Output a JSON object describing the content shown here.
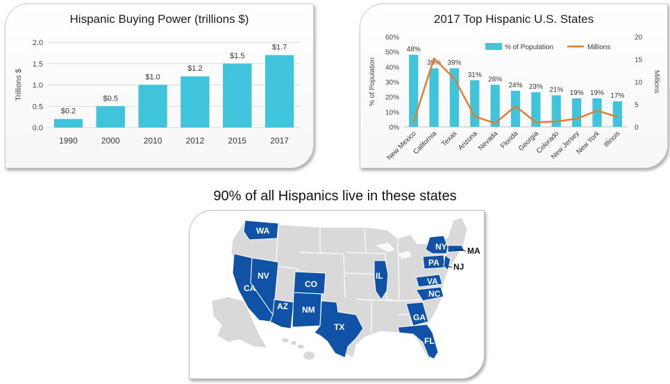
{
  "chart_data": [
    {
      "type": "bar",
      "title": "Hispanic Buying Power (trillions $)",
      "ylabel": "Trillions $",
      "categories": [
        "1990",
        "2000",
        "2010",
        "2012",
        "2015",
        "2017"
      ],
      "values": [
        0.2,
        0.5,
        1.0,
        1.2,
        1.5,
        1.7
      ],
      "data_labels": [
        "$0.2",
        "$0.5",
        "$1.0",
        "$1.2",
        "$1.5",
        "$1.7"
      ],
      "ylim": [
        0,
        2.0
      ],
      "yticks": [
        "0.0",
        "0.5",
        "1.0",
        "1.5",
        "2.0"
      ],
      "grid": true,
      "colors": {
        "bar": "#40c4dc",
        "grid": "#d9d9d9"
      }
    },
    {
      "type": "bar",
      "title": "2017 Top Hispanic U.S. States",
      "ylabel": "% of Population",
      "y2label": "Millions",
      "categories": [
        "New Mexico",
        "California",
        "Texas",
        "Arizona",
        "Nevada",
        "Florida",
        "Georgia",
        "Colorado",
        "New Jersey",
        "New York",
        "Illinois"
      ],
      "series": [
        {
          "name": "% of Population",
          "type": "bar",
          "axis": "left",
          "values": [
            48,
            39,
            39,
            31,
            28,
            24,
            23,
            21,
            19,
            19,
            17
          ],
          "data_labels": [
            "48%",
            "39%",
            "39%",
            "31%",
            "28%",
            "24%",
            "23%",
            "21%",
            "19%",
            "19%",
            "17%"
          ]
        },
        {
          "name": "Millions",
          "type": "line",
          "axis": "right",
          "values": [
            1.0,
            15.2,
            10.7,
            2.3,
            0.8,
            4.6,
            1.0,
            1.2,
            1.8,
            3.6,
            2.2
          ]
        }
      ],
      "ylim": [
        0,
        60
      ],
      "yticks": [
        "0%",
        "10%",
        "20%",
        "30%",
        "40%",
        "50%",
        "60%"
      ],
      "y2lim": [
        0,
        20
      ],
      "y2ticks": [
        "0",
        "5",
        "10",
        "15",
        "20"
      ],
      "legend": "top-right",
      "colors": {
        "bar": "#40c4dc",
        "line": "#e87a2e"
      }
    }
  ],
  "map": {
    "heading": "90% of all Hispanics live in these states",
    "state_labels": [
      "WA",
      "NV",
      "CA",
      "CO",
      "AZ",
      "NM",
      "TX",
      "IL",
      "NY",
      "MA",
      "PA",
      "NJ",
      "VA",
      "NC",
      "GA",
      "FL"
    ],
    "colors": {
      "highlight": "#0f52a6",
      "base": "#d9d9d9",
      "border": "#ffffff"
    }
  }
}
